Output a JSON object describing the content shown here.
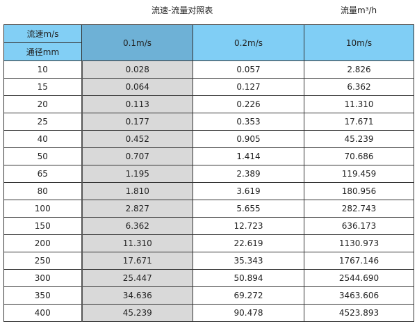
{
  "title": "流速-流量对照表",
  "unit_label": "流量m³/h",
  "colors": {
    "header": "#80cef5",
    "header_selected": "#6eb1d6",
    "first_col_body": "#d9d9d9"
  },
  "header": {
    "velocity_label": "流速m/s",
    "diameter_label": "通径mm",
    "columns": [
      "0.1m/s",
      "0.2m/s",
      "10m/s"
    ]
  },
  "rows": [
    [
      "10",
      "0.028",
      "0.057",
      "2.826"
    ],
    [
      "15",
      "0.064",
      "0.127",
      "6.362"
    ],
    [
      "20",
      "0.113",
      "0.226",
      "11.310"
    ],
    [
      "25",
      "0.177",
      "0.353",
      "17.671"
    ],
    [
      "40",
      "0.452",
      "0.905",
      "45.239"
    ],
    [
      "50",
      "0.707",
      "1.414",
      "70.686"
    ],
    [
      "65",
      "1.195",
      "2.389",
      "119.459"
    ],
    [
      "80",
      "1.810",
      "3.619",
      "180.956"
    ],
    [
      "100",
      "2.827",
      "5.655",
      "282.743"
    ],
    [
      "150",
      "6.362",
      "12.723",
      "636.173"
    ],
    [
      "200",
      "11.310",
      "22.619",
      "1130.973"
    ],
    [
      "250",
      "17.671",
      "35.343",
      "1767.146"
    ],
    [
      "300",
      "25.447",
      "50.894",
      "2544.690"
    ],
    [
      "350",
      "34.636",
      "69.272",
      "3463.606"
    ],
    [
      "400",
      "45.239",
      "90.478",
      "4523.893"
    ]
  ]
}
